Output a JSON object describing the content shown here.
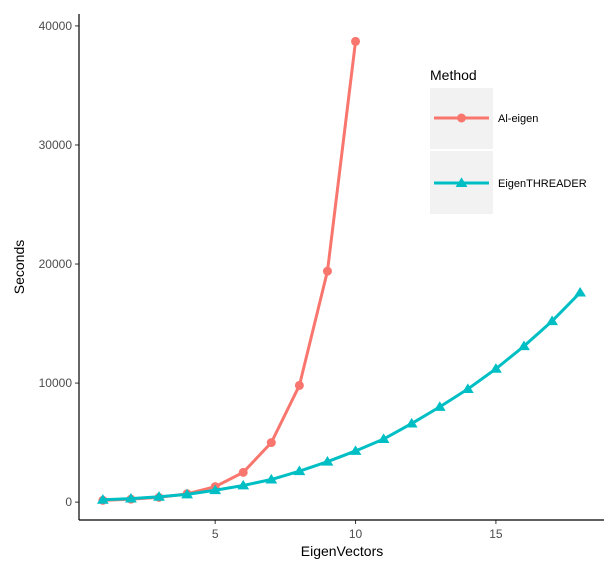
{
  "chart_data": {
    "type": "line",
    "title": "",
    "xlabel": "EigenVectors",
    "ylabel": "Seconds",
    "xlim": [
      0.15,
      18.85
    ],
    "ylim": [
      -1500,
      41000
    ],
    "x_ticks": [
      5,
      10,
      15
    ],
    "y_ticks": [
      0,
      10000,
      20000,
      30000,
      40000
    ],
    "x_tick_labels": [
      "5",
      "10",
      "15"
    ],
    "y_tick_labels": [
      "0",
      "10000",
      "20000",
      "30000",
      "40000"
    ],
    "grid": false,
    "legend": {
      "title": "Method",
      "position": "right-top-inside"
    },
    "series": [
      {
        "name": "Al-eigen",
        "color": "#F8766D",
        "marker": "circle",
        "x": [
          1,
          2,
          3,
          4,
          5,
          6,
          7,
          8,
          9,
          10
        ],
        "values": [
          150,
          250,
          400,
          700,
          1300,
          2500,
          5000,
          9800,
          19400,
          38700
        ]
      },
      {
        "name": "EigenTHREADER",
        "color": "#00BFC4",
        "marker": "triangle",
        "x": [
          1,
          2,
          3,
          4,
          5,
          6,
          7,
          8,
          9,
          10,
          11,
          12,
          13,
          14,
          15,
          16,
          17,
          18
        ],
        "values": [
          200,
          300,
          450,
          650,
          1000,
          1400,
          1900,
          2600,
          3400,
          4300,
          5300,
          6600,
          8000,
          9500,
          11200,
          13100,
          15200,
          17600
        ]
      }
    ]
  }
}
